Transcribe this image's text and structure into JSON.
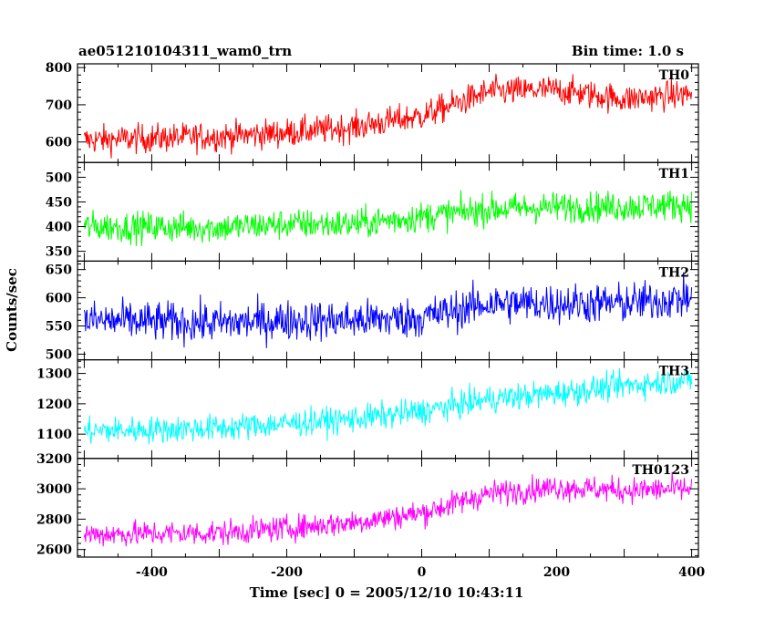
{
  "header": {
    "title": "ae051210104311_wam0_trn",
    "bin_time": "Bin time: 1.0 s"
  },
  "chart_data": {
    "type": "line",
    "xlabel": "Time [sec] 0 = 2005/12/10 10:43:11",
    "ylabel": "Counts/sec",
    "xlim": [
      -510,
      410
    ],
    "x_start": -500,
    "x_end": 400,
    "x_step": 1,
    "xticks": [
      -400,
      -200,
      0,
      200,
      400
    ],
    "grid": false,
    "panels": [
      {
        "name": "TH0",
        "color": "#ff0000",
        "ylim": [
          545,
          810
        ],
        "yticks": [
          600,
          700,
          800
        ],
        "trend": [
          [
            -500,
            605
          ],
          [
            -300,
            615
          ],
          [
            -200,
            625
          ],
          [
            -100,
            640
          ],
          [
            0,
            670
          ],
          [
            100,
            735
          ],
          [
            200,
            740
          ],
          [
            300,
            715
          ],
          [
            400,
            730
          ]
        ],
        "noise": 35
      },
      {
        "name": "TH1",
        "color": "#00ff00",
        "ylim": [
          330,
          530
        ],
        "yticks": [
          350,
          400,
          450,
          500
        ],
        "trend": [
          [
            -500,
            400
          ],
          [
            -300,
            398
          ],
          [
            -200,
            405
          ],
          [
            -100,
            405
          ],
          [
            0,
            420
          ],
          [
            100,
            435
          ],
          [
            200,
            440
          ],
          [
            300,
            440
          ],
          [
            400,
            445
          ]
        ],
        "noise": 28
      },
      {
        "name": "TH2",
        "color": "#0000ff",
        "ylim": [
          490,
          665
        ],
        "yticks": [
          500,
          550,
          600,
          650
        ],
        "trend": [
          [
            -500,
            560
          ],
          [
            -300,
            555
          ],
          [
            -200,
            560
          ],
          [
            -100,
            560
          ],
          [
            0,
            565
          ],
          [
            100,
            590
          ],
          [
            200,
            590
          ],
          [
            300,
            590
          ],
          [
            400,
            600
          ]
        ],
        "noise": 32
      },
      {
        "name": "TH3",
        "color": "#00ffff",
        "ylim": [
          1020,
          1345
        ],
        "yticks": [
          1100,
          1200,
          1300
        ],
        "trend": [
          [
            -500,
            1110
          ],
          [
            -300,
            1120
          ],
          [
            -200,
            1135
          ],
          [
            -100,
            1150
          ],
          [
            0,
            1175
          ],
          [
            100,
            1215
          ],
          [
            200,
            1235
          ],
          [
            300,
            1260
          ],
          [
            400,
            1280
          ]
        ],
        "noise": 40
      },
      {
        "name": "TH0123",
        "color": "#ff00ff",
        "ylim": [
          2550,
          3200
        ],
        "yticks": [
          2600,
          2800,
          3000,
          3200
        ],
        "trend": [
          [
            -500,
            2700
          ],
          [
            -300,
            2710
          ],
          [
            -200,
            2740
          ],
          [
            -100,
            2780
          ],
          [
            0,
            2840
          ],
          [
            100,
            2970
          ],
          [
            200,
            3010
          ],
          [
            300,
            2990
          ],
          [
            400,
            3000
          ]
        ],
        "noise": 75
      }
    ]
  }
}
